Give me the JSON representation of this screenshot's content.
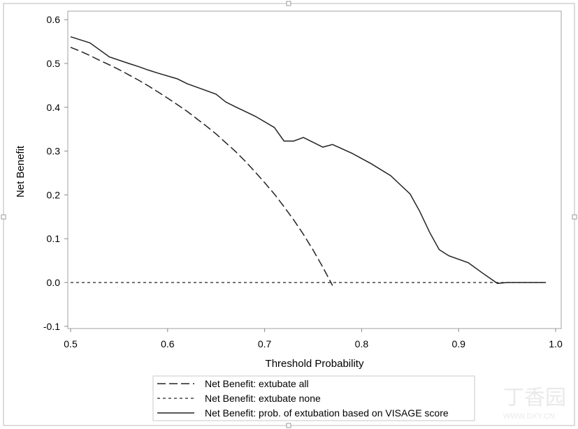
{
  "chart_data": {
    "type": "line",
    "title": "",
    "xlabel": "Threshold Probability",
    "ylabel": "Net Benefit",
    "xlim": [
      0.5,
      1.0
    ],
    "ylim": [
      -0.1,
      0.6
    ],
    "xticks": [
      "0.5",
      "0.6",
      "0.7",
      "0.8",
      "0.9",
      "1.0"
    ],
    "yticks": [
      "-0.1",
      "0.0",
      "0.1",
      "0.2",
      "0.3",
      "0.4",
      "0.5",
      "0.6"
    ],
    "grid": false,
    "legend_position": "bottom",
    "series": [
      {
        "name": "Net Benefit: extubate all",
        "style": "long-dash",
        "x": [
          0.5,
          0.51,
          0.52,
          0.53,
          0.54,
          0.55,
          0.56,
          0.57,
          0.58,
          0.59,
          0.6,
          0.61,
          0.62,
          0.63,
          0.64,
          0.65,
          0.66,
          0.67,
          0.68,
          0.69,
          0.7,
          0.71,
          0.72,
          0.73,
          0.74,
          0.75,
          0.76,
          0.77
        ],
        "y": [
          0.537,
          0.528,
          0.518,
          0.507,
          0.497,
          0.486,
          0.474,
          0.462,
          0.449,
          0.435,
          0.421,
          0.406,
          0.391,
          0.374,
          0.357,
          0.339,
          0.319,
          0.299,
          0.277,
          0.253,
          0.228,
          0.202,
          0.173,
          0.143,
          0.11,
          0.074,
          0.035,
          -0.007
        ]
      },
      {
        "name": "Net Benefit: extubate none",
        "style": "short-dash",
        "x": [
          0.5,
          0.99
        ],
        "y": [
          0.0,
          0.0
        ]
      },
      {
        "name": "Net Benefit: prob. of extubation based on VISAGE score",
        "style": "solid",
        "x": [
          0.5,
          0.52,
          0.54,
          0.56,
          0.57,
          0.58,
          0.59,
          0.61,
          0.62,
          0.63,
          0.65,
          0.66,
          0.67,
          0.69,
          0.71,
          0.72,
          0.73,
          0.74,
          0.76,
          0.77,
          0.79,
          0.81,
          0.83,
          0.84,
          0.85,
          0.86,
          0.87,
          0.88,
          0.89,
          0.91,
          0.925,
          0.94,
          0.95,
          0.99
        ],
        "y": [
          0.561,
          0.547,
          0.515,
          0.5,
          0.493,
          0.485,
          0.478,
          0.465,
          0.454,
          0.446,
          0.43,
          0.412,
          0.401,
          0.38,
          0.354,
          0.323,
          0.323,
          0.331,
          0.309,
          0.315,
          0.295,
          0.271,
          0.244,
          0.223,
          0.202,
          0.162,
          0.115,
          0.075,
          0.061,
          0.045,
          0.021,
          -0.002,
          0.0,
          0.0
        ]
      }
    ]
  },
  "watermark": {
    "logo_text": "丁香园",
    "url_text": "WWW.DXY.CN"
  }
}
